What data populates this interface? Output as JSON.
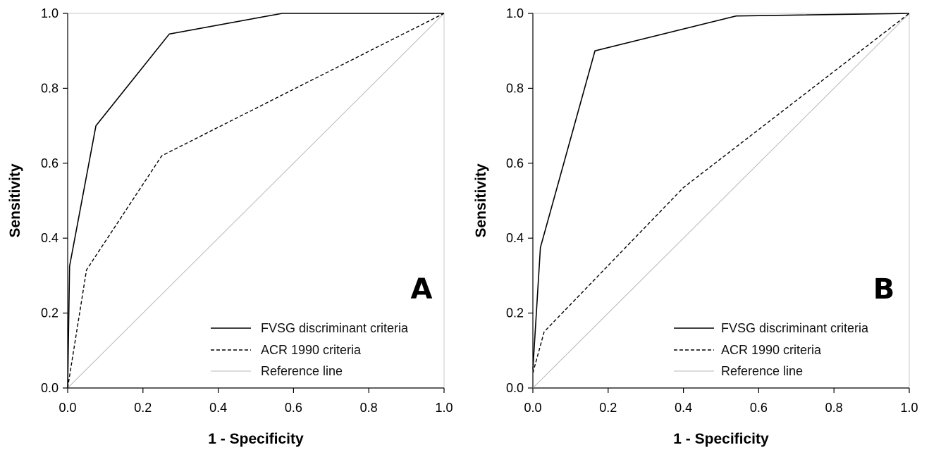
{
  "chart_data": [
    {
      "type": "line",
      "panel_label": "A",
      "xlabel": "1 - Specificity",
      "ylabel": "Sensitivity",
      "xlim": [
        0,
        1
      ],
      "ylim": [
        0,
        1
      ],
      "xticks": [
        "0.0",
        "0.2",
        "0.4",
        "0.6",
        "0.8",
        "1.0"
      ],
      "yticks": [
        "0.0",
        "0.2",
        "0.4",
        "0.6",
        "0.8",
        "1.0"
      ],
      "grid": false,
      "legend_position": "bottom-right",
      "series": [
        {
          "name": "FVSG discriminant criteria",
          "style": "solid",
          "color": "#000000",
          "points": [
            [
              0,
              0
            ],
            [
              0.005,
              0.325
            ],
            [
              0.075,
              0.7
            ],
            [
              0.27,
              0.945
            ],
            [
              0.57,
              1.0
            ],
            [
              1.0,
              1.0
            ]
          ]
        },
        {
          "name": "ACR 1990 criteria",
          "style": "dashed",
          "color": "#000000",
          "points": [
            [
              0,
              0
            ],
            [
              0.05,
              0.315
            ],
            [
              0.25,
              0.62
            ],
            [
              1.0,
              1.0
            ]
          ]
        },
        {
          "name": "Reference line",
          "style": "thin",
          "color": "#b8b8b8",
          "points": [
            [
              0,
              0
            ],
            [
              1,
              1
            ]
          ]
        }
      ]
    },
    {
      "type": "line",
      "panel_label": "B",
      "xlabel": "1 - Specificity",
      "ylabel": "Sensitivity",
      "xlim": [
        0,
        1
      ],
      "ylim": [
        0,
        1
      ],
      "xticks": [
        "0.0",
        "0.2",
        "0.4",
        "0.6",
        "0.8",
        "1.0"
      ],
      "yticks": [
        "0.0",
        "0.2",
        "0.4",
        "0.6",
        "0.8",
        "1.0"
      ],
      "grid": false,
      "legend_position": "bottom-right",
      "series": [
        {
          "name": "FVSG discriminant criteria",
          "style": "solid",
          "color": "#000000",
          "points": [
            [
              0,
              0.05
            ],
            [
              0.02,
              0.375
            ],
            [
              0.165,
              0.9
            ],
            [
              0.54,
              0.993
            ],
            [
              1.0,
              1.0
            ]
          ]
        },
        {
          "name": "ACR 1990 criteria",
          "style": "dashed",
          "color": "#000000",
          "points": [
            [
              0,
              0.04
            ],
            [
              0.03,
              0.15
            ],
            [
              0.4,
              0.535
            ],
            [
              1.0,
              1.0
            ]
          ]
        },
        {
          "name": "Reference line",
          "style": "thin",
          "color": "#b8b8b8",
          "points": [
            [
              0,
              0
            ],
            [
              1,
              1
            ]
          ]
        }
      ]
    }
  ]
}
